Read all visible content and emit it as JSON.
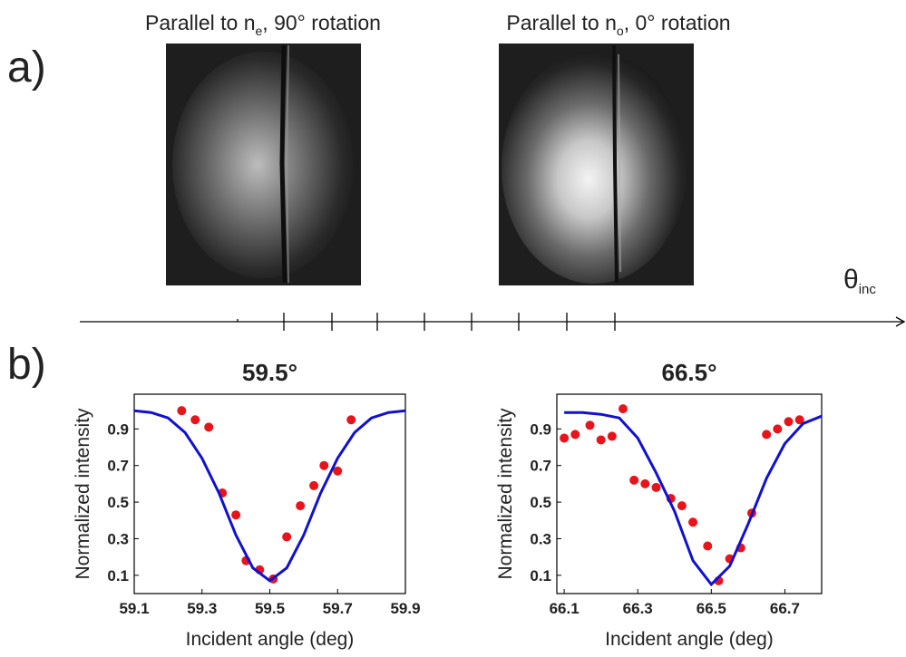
{
  "panel_a": {
    "label": "a)",
    "images": [
      {
        "title": "Parallel to n",
        "subscript": "e",
        "title_end": ", 90° rotation"
      },
      {
        "title": "Parallel to n",
        "subscript": "o",
        "title_end": ", 0° rotation"
      }
    ],
    "axis_label": "θ",
    "axis_label_subscript": "inc"
  },
  "panel_b": {
    "label": "b)"
  },
  "chart_data": [
    {
      "type": "scatter",
      "title": "59.5°",
      "x_label": "Incident angle (deg)",
      "y_label": "Normalized intensity",
      "xlim": [
        59.1,
        59.9
      ],
      "ylim": [
        0,
        1.09
      ],
      "xticks": [
        59.1,
        59.3,
        59.5,
        59.7,
        59.9
      ],
      "yticks": [
        0.1,
        0.3,
        0.5,
        0.7,
        0.9
      ],
      "series": [
        {
          "style": "points",
          "color": "#e8141b",
          "x": [
            59.24,
            59.28,
            59.32,
            59.36,
            59.4,
            59.43,
            59.47,
            59.51,
            59.55,
            59.59,
            59.63,
            59.66,
            59.7,
            59.74
          ],
          "values": [
            1.0,
            0.95,
            0.91,
            0.55,
            0.43,
            0.18,
            0.13,
            0.08,
            0.31,
            0.48,
            0.59,
            0.7,
            0.67,
            0.95
          ]
        },
        {
          "style": "line",
          "color": "#1010d0",
          "x": [
            59.1,
            59.15,
            59.2,
            59.25,
            59.3,
            59.35,
            59.4,
            59.45,
            59.5,
            59.55,
            59.6,
            59.65,
            59.7,
            59.75,
            59.8,
            59.85,
            59.9
          ],
          "values": [
            1.0,
            0.99,
            0.96,
            0.88,
            0.74,
            0.55,
            0.32,
            0.14,
            0.07,
            0.14,
            0.32,
            0.55,
            0.74,
            0.88,
            0.96,
            0.99,
            1.0
          ]
        }
      ]
    },
    {
      "type": "scatter",
      "title": "66.5°",
      "x_label": "Incident angle (deg)",
      "y_label": "Normalized intensity",
      "xlim": [
        66.08,
        66.8
      ],
      "ylim": [
        0,
        1.09
      ],
      "xticks": [
        66.1,
        66.3,
        66.5,
        66.7
      ],
      "yticks": [
        0.1,
        0.3,
        0.5,
        0.7,
        0.9
      ],
      "series": [
        {
          "style": "points",
          "color": "#e8141b",
          "x": [
            66.1,
            66.13,
            66.17,
            66.2,
            66.23,
            66.26,
            66.29,
            66.32,
            66.35,
            66.39,
            66.42,
            66.45,
            66.49,
            66.52,
            66.55,
            66.58,
            66.61,
            66.65,
            66.68,
            66.71,
            66.74
          ],
          "values": [
            0.85,
            0.87,
            0.92,
            0.84,
            0.86,
            1.01,
            0.62,
            0.6,
            0.58,
            0.52,
            0.48,
            0.39,
            0.26,
            0.07,
            0.19,
            0.25,
            0.44,
            0.87,
            0.9,
            0.94,
            0.95
          ]
        },
        {
          "style": "line",
          "color": "#1010d0",
          "x": [
            66.1,
            66.15,
            66.2,
            66.25,
            66.3,
            66.35,
            66.4,
            66.45,
            66.5,
            66.55,
            66.6,
            66.65,
            66.7,
            66.75,
            66.8
          ],
          "values": [
            0.99,
            0.99,
            0.98,
            0.96,
            0.85,
            0.66,
            0.45,
            0.18,
            0.05,
            0.15,
            0.38,
            0.63,
            0.82,
            0.93,
            0.97
          ]
        }
      ]
    }
  ]
}
